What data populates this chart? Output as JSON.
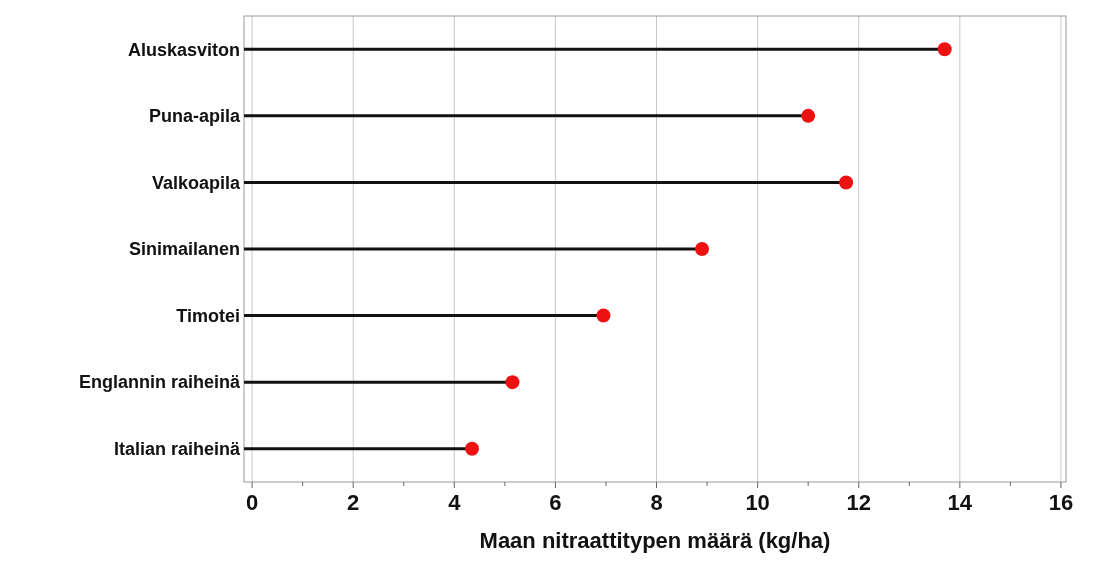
{
  "chart_data": {
    "type": "lollipop",
    "orientation": "horizontal",
    "xlabel": "Maan nitraattitypen määrä (kg/ha)",
    "categories": [
      "Aluskasviton",
      "Puna-apila",
      "Valkoapila",
      "Sinimailanen",
      "Timotei",
      "Englannin raiheinä",
      "Italian raiheinä"
    ],
    "values": [
      13.7,
      11.0,
      11.75,
      8.9,
      6.95,
      5.15,
      4.35
    ],
    "color": "#ee1111",
    "marker": "circle",
    "xlim": [
      -0.16,
      16.1
    ],
    "xticks": [
      0,
      {
        "value": 1,
        "label": null
      },
      2,
      {
        "value": 3,
        "label": null
      },
      4,
      {
        "value": 5,
        "label": null
      },
      6,
      {
        "value": 7,
        "label": null
      },
      8,
      {
        "value": 9,
        "label": null
      },
      10,
      {
        "value": 11,
        "label": null
      },
      12,
      {
        "value": 13,
        "label": null
      },
      14,
      {
        "value": 15,
        "label": null
      },
      16
    ],
    "grid": "x"
  }
}
